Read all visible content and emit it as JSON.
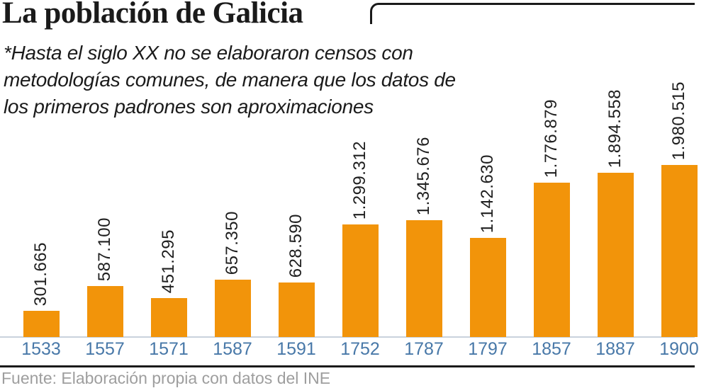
{
  "title": "La población de Galicia",
  "subtitle": {
    "lines": [
      "*Hasta el siglo XX no se elaboraron censos con",
      "metodologías comunes, de manera que los datos de",
      "los primeros padrones son aproximaciones"
    ]
  },
  "chart_data": {
    "type": "bar",
    "title": "La población de Galicia",
    "xlabel": "",
    "ylabel": "",
    "categories": [
      "1533",
      "1557",
      "1571",
      "1587",
      "1591",
      "1752",
      "1787",
      "1797",
      "1857",
      "1887",
      "1900"
    ],
    "values": [
      301665,
      587100,
      451295,
      657350,
      628590,
      1299312,
      1345676,
      1142630,
      1776879,
      1894558,
      1980515
    ],
    "value_labels": [
      "301.665",
      "587.100",
      "451.295",
      "657.350",
      "628.590",
      "1.299.312",
      "1.345.676",
      "1.142.630",
      "1.776.879",
      "1.894.558",
      "1.980.515"
    ],
    "ylim": [
      0,
      2000000
    ],
    "grid": false,
    "legend": "none",
    "bar_color": "#F2940A",
    "category_label_color": "#4878A8",
    "value_label_color": "#1F1F1F",
    "baseline_color": "#C9D2DC"
  },
  "source": "Fuente: Elaboración propia con datos del INE"
}
